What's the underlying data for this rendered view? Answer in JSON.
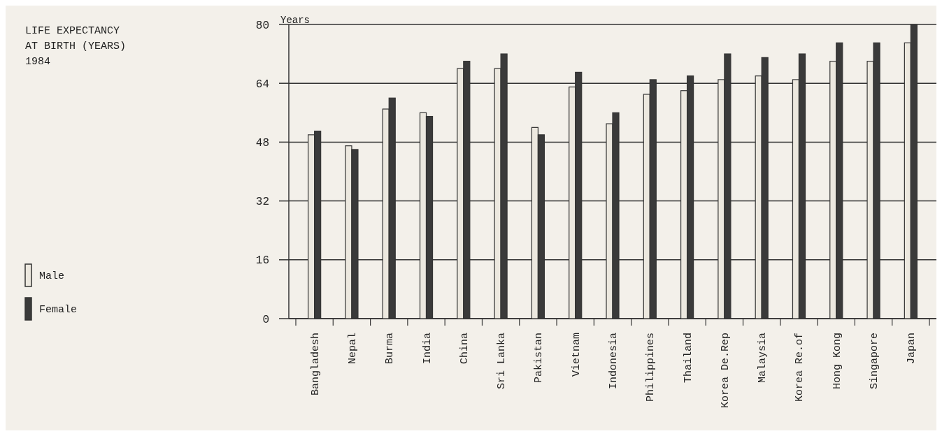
{
  "chart_data": {
    "type": "bar",
    "title": "LIFE EXPECTANCY AT BIRTH (YEARS)",
    "subtitle": "1984",
    "ylabel": "Years",
    "categories": [
      "Bangladesh",
      "Nepal",
      "Burma",
      "India",
      "China",
      "Sri Lanka",
      "Pakistan",
      "Vietnam",
      "Indonesia",
      "Philippines",
      "Thailand",
      "Korea De.Rep",
      "Malaysia",
      "Korea Re.of",
      "Hong Kong",
      "Singapore",
      "Japan"
    ],
    "series": [
      {
        "name": "Male",
        "color": "#ece8df",
        "values": [
          50,
          47,
          57,
          56,
          68,
          68,
          52,
          63,
          53,
          61,
          62,
          65,
          66,
          65,
          70,
          70,
          75
        ]
      },
      {
        "name": "Female",
        "color": "#3a3a3a",
        "values": [
          51,
          46,
          60,
          55,
          70,
          72,
          50,
          67,
          56,
          65,
          66,
          72,
          71,
          72,
          75,
          75,
          80
        ]
      }
    ],
    "ylim": [
      0,
      80
    ],
    "yticks": [
      0,
      16,
      32,
      48,
      64,
      80
    ],
    "grid": "y",
    "legend": "left"
  }
}
